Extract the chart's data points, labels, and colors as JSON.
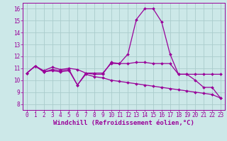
{
  "bg_color": "#cce8e8",
  "grid_color": "#aacccc",
  "line_color": "#990099",
  "marker": "D",
  "markersize": 2.0,
  "linewidth": 0.9,
  "xlabel": "Windchill (Refroidissement éolien,°C)",
  "xlabel_fontsize": 6.5,
  "tick_fontsize": 5.5,
  "xlim": [
    -0.5,
    23.5
  ],
  "ylim": [
    7.5,
    16.5
  ],
  "yticks": [
    8,
    9,
    10,
    11,
    12,
    13,
    14,
    15,
    16
  ],
  "xticks": [
    0,
    1,
    2,
    3,
    4,
    5,
    6,
    7,
    8,
    9,
    10,
    11,
    12,
    13,
    14,
    15,
    16,
    17,
    18,
    19,
    20,
    21,
    22,
    23
  ],
  "xtick_labels": [
    "0",
    "1",
    "2",
    "3",
    "4",
    "5",
    "6",
    "7",
    "8",
    "9",
    "10",
    "11",
    "12",
    "13",
    "14",
    "15",
    "16",
    "17",
    "18",
    "19",
    "20",
    "21",
    "22",
    "23"
  ],
  "series1_x": [
    0,
    1,
    2,
    3,
    4,
    5,
    6,
    7,
    8,
    9,
    10,
    11,
    12,
    13,
    14,
    15,
    16,
    17,
    18,
    19,
    20,
    21,
    22,
    23
  ],
  "series1_y": [
    10.6,
    11.2,
    10.7,
    10.9,
    10.8,
    10.9,
    9.6,
    10.6,
    10.5,
    10.5,
    11.5,
    11.4,
    12.2,
    15.1,
    16.0,
    16.0,
    14.9,
    12.2,
    10.5,
    10.5,
    10.0,
    9.4,
    9.4,
    8.5
  ],
  "series2_x": [
    0,
    1,
    2,
    3,
    4,
    5,
    6,
    7,
    8,
    9,
    10,
    11,
    12,
    13,
    14,
    15,
    16,
    17,
    18,
    19,
    20,
    21,
    22,
    23
  ],
  "series2_y": [
    10.6,
    11.2,
    10.8,
    11.1,
    10.9,
    11.0,
    10.9,
    10.6,
    10.6,
    10.6,
    11.4,
    11.4,
    11.4,
    11.5,
    11.5,
    11.4,
    11.4,
    11.4,
    10.5,
    10.5,
    10.5,
    10.5,
    10.5,
    10.5
  ],
  "series3_x": [
    0,
    1,
    2,
    3,
    4,
    5,
    6,
    7,
    8,
    9,
    10,
    11,
    12,
    13,
    14,
    15,
    16,
    17,
    18,
    19,
    20,
    21,
    22,
    23
  ],
  "series3_y": [
    10.6,
    11.2,
    10.7,
    10.8,
    10.7,
    10.8,
    9.6,
    10.5,
    10.3,
    10.2,
    10.0,
    9.9,
    9.8,
    9.7,
    9.6,
    9.5,
    9.4,
    9.3,
    9.2,
    9.1,
    9.0,
    8.9,
    8.8,
    8.5
  ]
}
